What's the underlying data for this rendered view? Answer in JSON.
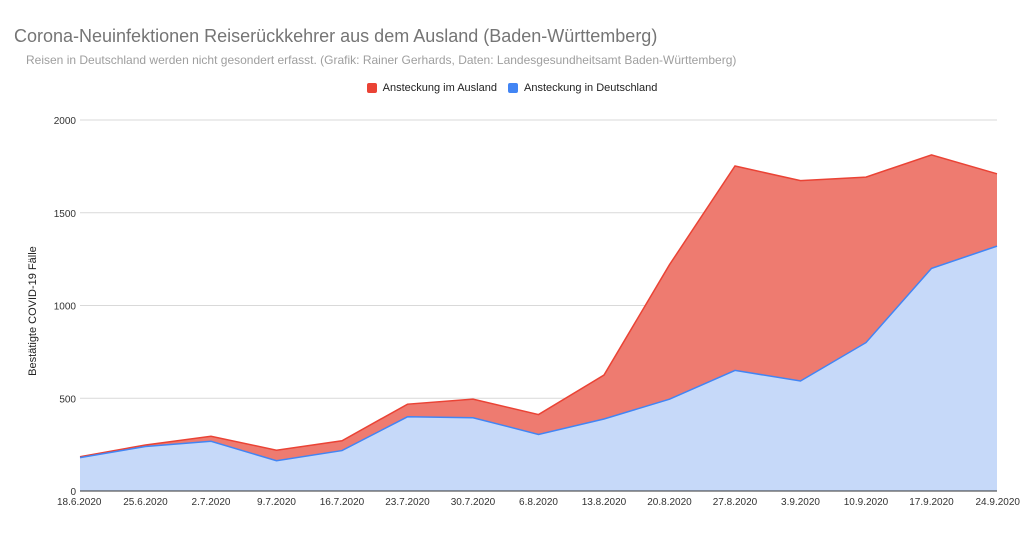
{
  "chart_data": {
    "type": "area",
    "stacked": true,
    "title": "Corona-Neuinfektionen Reiserückkehrer aus dem Ausland (Baden-Württemberg)",
    "subtitle": "Reisen in Deutschland werden nicht gesondert erfasst. (Grafik: Rainer Gerhards, Daten: Landesgesundheitsamt Baden-Württemberg)",
    "ylabel": "Bestätigte COVID-19 Fälle",
    "ylim": [
      0,
      2000
    ],
    "yticks": [
      "0",
      "500",
      "1000",
      "1500",
      "2000"
    ],
    "grid": true,
    "legend_position": "top",
    "categories": [
      "18.6.2020",
      "25.6.2020",
      "2.7.2020",
      "9.7.2020",
      "16.7.2020",
      "23.7.2020",
      "30.7.2020",
      "6.8.2020",
      "13.8.2020",
      "20.8.2020",
      "27.8.2020",
      "3.9.2020",
      "10.9.2020",
      "17.9.2020",
      "24.9.2020"
    ],
    "series": [
      {
        "name": "Ansteckung in Deutschland",
        "color": "#4285f4",
        "fill": "#c6d9f9",
        "values": [
          180,
          240,
          268,
          163,
          218,
          400,
          395,
          305,
          388,
          495,
          650,
          593,
          800,
          1200,
          1320
        ]
      },
      {
        "name": "Ansteckung im Ausland",
        "color": "#ea4335",
        "fill": "#ee7b70",
        "values": [
          5,
          8,
          27,
          57,
          53,
          68,
          100,
          107,
          237,
          725,
          1102,
          1080,
          892,
          612,
          390
        ]
      }
    ]
  }
}
